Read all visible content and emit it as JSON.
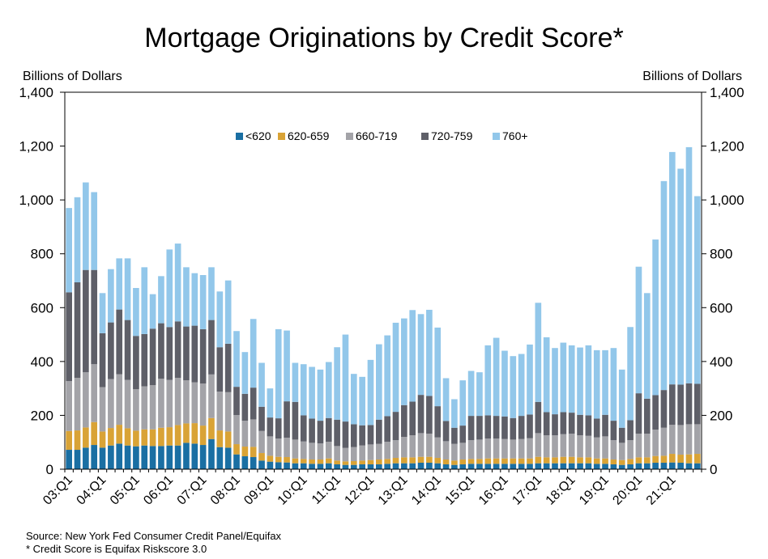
{
  "chart_data": {
    "type": "stacked-bar",
    "title": "Mortgage Originations by Credit Score*",
    "ylabel_left": "Billions of Dollars",
    "ylabel_right": "Billions of Dollars",
    "ylim": [
      0,
      1400
    ],
    "yticks": [
      0,
      200,
      400,
      600,
      800,
      "1,000",
      "1,200",
      "1,400"
    ],
    "ytick_values": [
      0,
      200,
      400,
      600,
      800,
      1000,
      1200,
      1400
    ],
    "grid": false,
    "legend_position": "top-center",
    "x_tick_labels": [
      "03:Q1",
      "04:Q1",
      "05:Q1",
      "06:Q1",
      "07:Q1",
      "08:Q1",
      "09:Q1",
      "10:Q1",
      "11:Q1",
      "12:Q1",
      "13:Q1",
      "14:Q1",
      "15:Q1",
      "16:Q1",
      "17:Q1",
      "18:Q1",
      "19:Q1",
      "20:Q1",
      "21:Q1"
    ],
    "x_tick_every": 4,
    "categories": [
      "03:Q1",
      "03:Q2",
      "03:Q3",
      "03:Q4",
      "04:Q1",
      "04:Q2",
      "04:Q3",
      "04:Q4",
      "05:Q1",
      "05:Q2",
      "05:Q3",
      "05:Q4",
      "06:Q1",
      "06:Q2",
      "06:Q3",
      "06:Q4",
      "07:Q1",
      "07:Q2",
      "07:Q3",
      "07:Q4",
      "08:Q1",
      "08:Q2",
      "08:Q3",
      "08:Q4",
      "09:Q1",
      "09:Q2",
      "09:Q3",
      "09:Q4",
      "10:Q1",
      "10:Q2",
      "10:Q3",
      "10:Q4",
      "11:Q1",
      "11:Q2",
      "11:Q3",
      "11:Q4",
      "12:Q1",
      "12:Q2",
      "12:Q3",
      "12:Q4",
      "13:Q1",
      "13:Q2",
      "13:Q3",
      "13:Q4",
      "14:Q1",
      "14:Q2",
      "14:Q3",
      "14:Q4",
      "15:Q1",
      "15:Q2",
      "15:Q3",
      "15:Q4",
      "16:Q1",
      "16:Q2",
      "16:Q3",
      "16:Q4",
      "17:Q1",
      "17:Q2",
      "17:Q3",
      "17:Q4",
      "18:Q1",
      "18:Q2",
      "18:Q3",
      "18:Q4",
      "19:Q1",
      "19:Q2",
      "19:Q3",
      "19:Q4",
      "20:Q1",
      "20:Q2",
      "20:Q3",
      "20:Q4",
      "21:Q1",
      "21:Q2",
      "21:Q3",
      "21:Q4"
    ],
    "series": [
      {
        "name": "<620",
        "color": "#1a6fa3",
        "values": [
          72,
          72,
          80,
          90,
          80,
          88,
          95,
          88,
          85,
          88,
          86,
          86,
          88,
          88,
          98,
          95,
          90,
          112,
          82,
          80,
          55,
          48,
          45,
          32,
          28,
          26,
          25,
          22,
          22,
          20,
          20,
          22,
          18,
          16,
          16,
          18,
          18,
          18,
          20,
          22,
          22,
          22,
          24,
          24,
          22,
          18,
          16,
          18,
          20,
          20,
          20,
          20,
          20,
          20,
          20,
          20,
          22,
          22,
          22,
          22,
          22,
          22,
          22,
          20,
          20,
          18,
          16,
          18,
          22,
          22,
          24,
          24,
          25,
          24,
          22,
          22
        ]
      },
      {
        "name": "620-659",
        "color": "#d9a336",
        "values": [
          70,
          72,
          75,
          85,
          60,
          65,
          70,
          64,
          58,
          60,
          62,
          68,
          68,
          76,
          72,
          76,
          72,
          78,
          62,
          60,
          38,
          36,
          38,
          28,
          22,
          20,
          20,
          18,
          16,
          16,
          16,
          18,
          14,
          13,
          14,
          14,
          16,
          18,
          18,
          20,
          22,
          22,
          22,
          22,
          20,
          18,
          16,
          18,
          18,
          18,
          20,
          20,
          20,
          20,
          20,
          20,
          24,
          22,
          22,
          24,
          24,
          22,
          22,
          20,
          20,
          18,
          18,
          20,
          22,
          22,
          25,
          26,
          32,
          30,
          33,
          35
        ]
      },
      {
        "name": "660-719",
        "color": "#a3a3a8",
        "values": [
          185,
          195,
          205,
          215,
          165,
          182,
          188,
          180,
          154,
          160,
          164,
          182,
          176,
          175,
          160,
          152,
          156,
          162,
          144,
          146,
          108,
          96,
          102,
          82,
          72,
          68,
          72,
          70,
          65,
          62,
          60,
          62,
          54,
          50,
          52,
          56,
          58,
          58,
          64,
          66,
          76,
          82,
          88,
          86,
          76,
          68,
          62,
          62,
          70,
          72,
          74,
          74,
          72,
          70,
          72,
          75,
          88,
          82,
          82,
          84,
          86,
          82,
          80,
          78,
          82,
          72,
          64,
          70,
          88,
          88,
          98,
          104,
          108,
          110,
          112,
          110
        ]
      },
      {
        "name": "720-759",
        "color": "#5e5f68",
        "values": [
          330,
          355,
          380,
          350,
          200,
          210,
          240,
          222,
          198,
          194,
          210,
          206,
          196,
          210,
          200,
          210,
          202,
          202,
          165,
          180,
          105,
          100,
          118,
          90,
          70,
          75,
          135,
          140,
          97,
          90,
          84,
          88,
          98,
          98,
          85,
          75,
          72,
          90,
          95,
          105,
          118,
          125,
          142,
          140,
          116,
          75,
          60,
          64,
          90,
          88,
          86,
          84,
          84,
          80,
          86,
          88,
          116,
          86,
          78,
          82,
          78,
          76,
          76,
          70,
          80,
          72,
          56,
          74,
          150,
          130,
          128,
          140,
          150,
          150,
          152,
          150
        ]
      },
      {
        "name": "760+",
        "color": "#92c7ea",
        "values": [
          313,
          316,
          325,
          289,
          149,
          198,
          190,
          229,
          178,
          248,
          128,
          175,
          288,
          289,
          220,
          195,
          201,
          196,
          207,
          235,
          207,
          155,
          255,
          163,
          108,
          331,
          263,
          145,
          190,
          192,
          190,
          208,
          269,
          323,
          187,
          180,
          242,
          280,
          300,
          331,
          322,
          340,
          300,
          320,
          292,
          159,
          106,
          168,
          167,
          162,
          260,
          290,
          244,
          230,
          230,
          260,
          368,
          278,
          246,
          258,
          250,
          250,
          260,
          254,
          240,
          270,
          216,
          346,
          470,
          392,
          578,
          776,
          863,
          802,
          877,
          697
        ]
      }
    ]
  },
  "footnotes": {
    "source": "Source: New York Fed Consumer Credit Panel/Equifax",
    "note": "* Credit Score is Equifax Riskscore 3.0"
  }
}
